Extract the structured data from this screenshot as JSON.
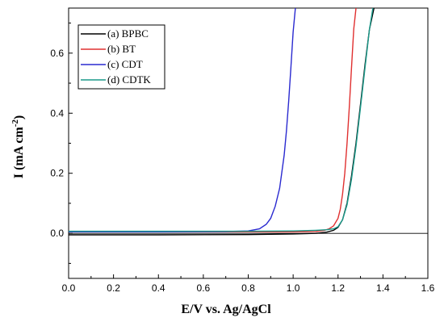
{
  "chart_data": {
    "type": "line",
    "xlabel": "E/V vs. Ag/AgCl",
    "ylabel_main": "I (mA cm",
    "ylabel_sup": "-2",
    "ylabel_close": ")",
    "xlim": [
      0.0,
      1.6
    ],
    "ylim": [
      -0.15,
      0.75
    ],
    "x_ticks": [
      0.0,
      0.2,
      0.4,
      0.6,
      0.8,
      1.0,
      1.2,
      1.4,
      1.6
    ],
    "x_tick_labels": [
      "0.0",
      "0.2",
      "0.4",
      "0.6",
      "0.8",
      "1.0",
      "1.2",
      "1.4",
      "1.6"
    ],
    "y_ticks": [
      0.0,
      0.2,
      0.4,
      0.6
    ],
    "y_tick_labels": [
      "0.0",
      "0.2",
      "0.4",
      "0.6"
    ],
    "legend_position": "top-left",
    "grid": false,
    "series": [
      {
        "name": "(a) BPBC",
        "color": "#000000",
        "x": [
          0.0,
          0.4,
          0.8,
          1.0,
          1.1,
          1.15,
          1.18,
          1.2,
          1.22,
          1.24,
          1.26,
          1.28,
          1.3,
          1.32,
          1.34,
          1.36
        ],
        "y": [
          -0.005,
          -0.005,
          -0.004,
          -0.002,
          0.0,
          0.004,
          0.01,
          0.02,
          0.045,
          0.1,
          0.19,
          0.3,
          0.43,
          0.56,
          0.68,
          0.75
        ]
      },
      {
        "name": "(b) BT",
        "color": "#e03030",
        "x": [
          0.0,
          0.4,
          0.8,
          1.0,
          1.1,
          1.14,
          1.16,
          1.18,
          1.2,
          1.21,
          1.22,
          1.23,
          1.24,
          1.25,
          1.26,
          1.27,
          1.28
        ],
        "y": [
          0.005,
          0.005,
          0.005,
          0.005,
          0.006,
          0.01,
          0.015,
          0.025,
          0.05,
          0.08,
          0.13,
          0.2,
          0.3,
          0.42,
          0.55,
          0.68,
          0.75
        ]
      },
      {
        "name": "(c) CDT",
        "color": "#2a2ad0",
        "x": [
          0.0,
          0.4,
          0.7,
          0.8,
          0.85,
          0.88,
          0.9,
          0.92,
          0.94,
          0.96,
          0.97,
          0.98,
          0.99,
          1.0,
          1.01
        ],
        "y": [
          0.005,
          0.005,
          0.006,
          0.008,
          0.015,
          0.03,
          0.05,
          0.09,
          0.15,
          0.26,
          0.34,
          0.44,
          0.55,
          0.67,
          0.75
        ]
      },
      {
        "name": "(d) CDTK",
        "color": "#1a9a8a",
        "x": [
          0.0,
          0.4,
          0.8,
          1.0,
          1.1,
          1.15,
          1.18,
          1.2,
          1.22,
          1.24,
          1.26,
          1.28,
          1.3,
          1.32,
          1.34,
          1.355
        ],
        "y": [
          0.007,
          0.007,
          0.007,
          0.008,
          0.01,
          0.012,
          0.015,
          0.022,
          0.045,
          0.095,
          0.18,
          0.29,
          0.42,
          0.55,
          0.68,
          0.75
        ]
      }
    ]
  }
}
